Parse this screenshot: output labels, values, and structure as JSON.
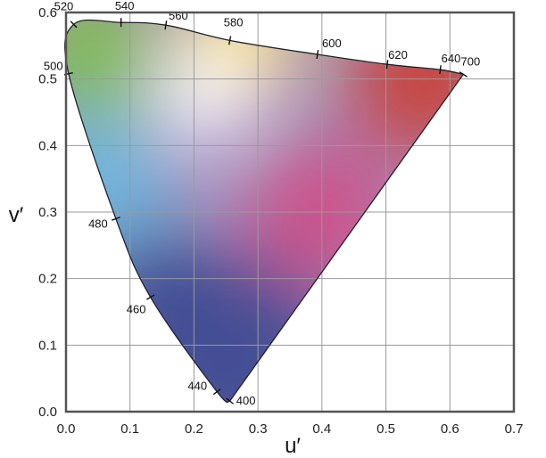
{
  "chart_data": {
    "type": "scatter",
    "title": "",
    "xlabel": "u′",
    "ylabel": "v′",
    "xlim": [
      0,
      0.7
    ],
    "ylim": [
      0,
      0.6
    ],
    "xticks": [
      "0.0",
      "0.1",
      "0.2",
      "0.3",
      "0.4",
      "0.5",
      "0.6",
      "0.7"
    ],
    "yticks": [
      "0.0",
      "0.1",
      "0.2",
      "0.3",
      "0.4",
      "0.5",
      "0.6"
    ],
    "grid": true,
    "colors": {
      "grid": "#9a9a9a",
      "frame": "#555555",
      "locus": "#222222",
      "green": "#7fbf4f",
      "yellow": "#ffe866",
      "red": "#c9413a",
      "magenta": "#cf4f86",
      "cyan": "#6fb6dc",
      "blue": "#3e4b92",
      "white": "#ffffff"
    },
    "series": [
      {
        "points": [
          {
            "nm": "400",
            "u": 0.256,
            "v": 0.016
          },
          {
            "nm": "440",
            "u": 0.236,
            "v": 0.03
          },
          {
            "nm": "460",
            "u": 0.132,
            "v": 0.172
          },
          {
            "nm": "480",
            "u": 0.078,
            "v": 0.29
          },
          {
            "nm": "500",
            "u": 0.004,
            "v": 0.508
          },
          {
            "nm": "520",
            "u": 0.012,
            "v": 0.582
          },
          {
            "nm": "540",
            "u": 0.086,
            "v": 0.585
          },
          {
            "nm": "560",
            "u": 0.156,
            "v": 0.581
          },
          {
            "nm": "580",
            "u": 0.256,
            "v": 0.558
          },
          {
            "nm": "600",
            "u": 0.393,
            "v": 0.537
          },
          {
            "nm": "620",
            "u": 0.502,
            "v": 0.522
          },
          {
            "nm": "640",
            "u": 0.585,
            "v": 0.514
          },
          {
            "nm": "700",
            "u": 0.621,
            "v": 0.507
          }
        ]
      }
    ]
  }
}
